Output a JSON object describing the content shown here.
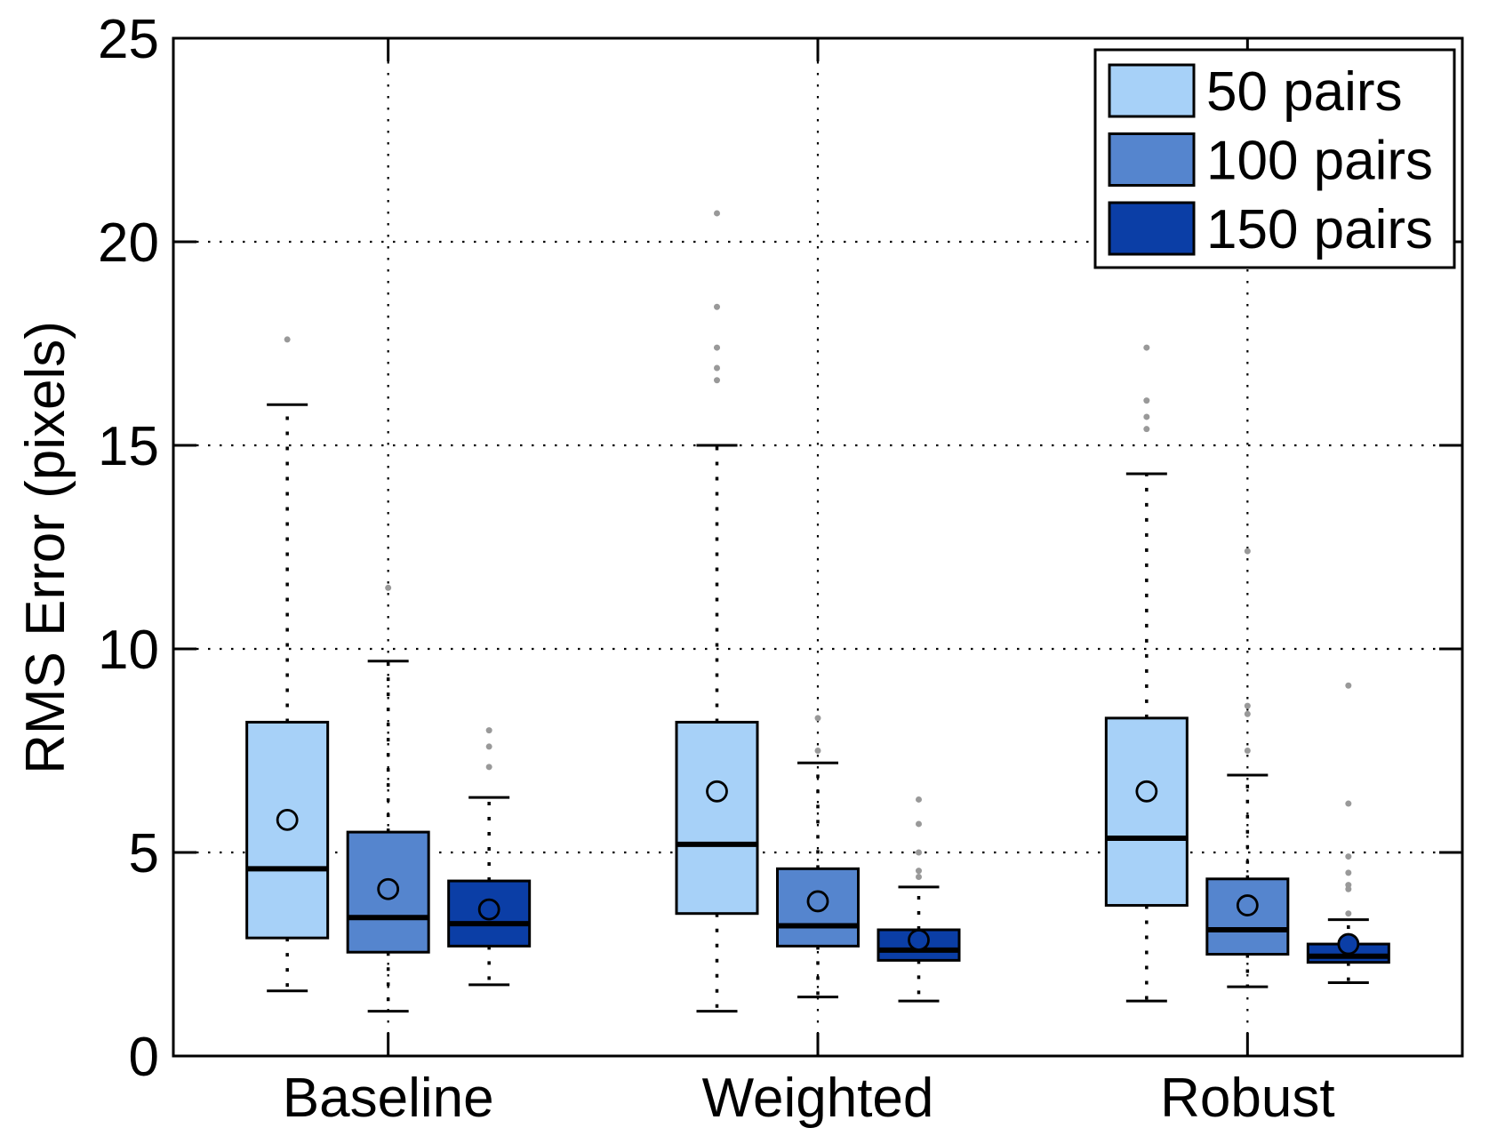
{
  "chart_data": {
    "type": "boxplot",
    "title": "",
    "xlabel": "",
    "ylabel": "RMS Error (pixels)",
    "ylim": [
      0,
      25
    ],
    "yticks": [
      0,
      5,
      10,
      15,
      20,
      25
    ],
    "grid": "dotted horizontal and vertical gridlines",
    "categories": [
      "Baseline",
      "Weighted",
      "Robust"
    ],
    "legend": {
      "position": "top-right",
      "entries": [
        {
          "label": "50 pairs",
          "color": "#A7D1F8"
        },
        {
          "label": "100 pairs",
          "color": "#5585CE"
        },
        {
          "label": "150 pairs",
          "color": "#0B3EA6"
        }
      ]
    },
    "styles": {
      "box_edge_color": "#000000",
      "median_color": "#000000",
      "whisker_style": "dashed",
      "mean_marker": "circle",
      "outlier_color": "#999999",
      "background": "#ffffff"
    },
    "series": [
      {
        "name": "50 pairs",
        "color": "#A7D1F8",
        "boxes": [
          {
            "category": "Baseline",
            "whisker_low": 1.6,
            "q1": 2.9,
            "median": 4.6,
            "q3": 8.2,
            "whisker_high": 16.0,
            "mean": 5.8,
            "outliers": [
              17.6
            ]
          },
          {
            "category": "Weighted",
            "whisker_low": 1.1,
            "q1": 3.5,
            "median": 5.2,
            "q3": 8.2,
            "whisker_high": 15.0,
            "mean": 6.5,
            "outliers": [
              16.6,
              16.9,
              17.4,
              18.4,
              20.7
            ]
          },
          {
            "category": "Robust",
            "whisker_low": 1.35,
            "q1": 3.7,
            "median": 5.35,
            "q3": 8.3,
            "whisker_high": 14.3,
            "mean": 6.5,
            "outliers": [
              15.4,
              15.7,
              16.1,
              17.4
            ]
          }
        ]
      },
      {
        "name": "100 pairs",
        "color": "#5585CE",
        "boxes": [
          {
            "category": "Baseline",
            "whisker_low": 1.1,
            "q1": 2.55,
            "median": 3.4,
            "q3": 5.5,
            "whisker_high": 9.7,
            "mean": 4.1,
            "outliers": [
              11.5
            ]
          },
          {
            "category": "Weighted",
            "whisker_low": 1.45,
            "q1": 2.7,
            "median": 3.2,
            "q3": 4.6,
            "whisker_high": 7.2,
            "mean": 3.8,
            "outliers": [
              7.5,
              8.3
            ]
          },
          {
            "category": "Robust",
            "whisker_low": 1.7,
            "q1": 2.5,
            "median": 3.1,
            "q3": 4.35,
            "whisker_high": 6.9,
            "mean": 3.7,
            "outliers": [
              7.5,
              8.4,
              8.6,
              12.4
            ]
          }
        ]
      },
      {
        "name": "150 pairs",
        "color": "#0B3EA6",
        "boxes": [
          {
            "category": "Baseline",
            "whisker_low": 1.75,
            "q1": 2.7,
            "median": 3.25,
            "q3": 4.3,
            "whisker_high": 6.35,
            "mean": 3.6,
            "outliers": [
              7.1,
              7.6,
              8.0
            ]
          },
          {
            "category": "Weighted",
            "whisker_low": 1.35,
            "q1": 2.35,
            "median": 2.6,
            "q3": 3.1,
            "whisker_high": 4.15,
            "mean": 2.85,
            "outliers": [
              4.4,
              4.55,
              5.0,
              5.7,
              6.3
            ]
          },
          {
            "category": "Robust",
            "whisker_low": 1.8,
            "q1": 2.3,
            "median": 2.45,
            "q3": 2.75,
            "whisker_high": 3.35,
            "mean": 2.75,
            "outliers": [
              3.5,
              4.1,
              4.2,
              4.5,
              4.9,
              6.2,
              9.1
            ]
          }
        ]
      }
    ]
  }
}
